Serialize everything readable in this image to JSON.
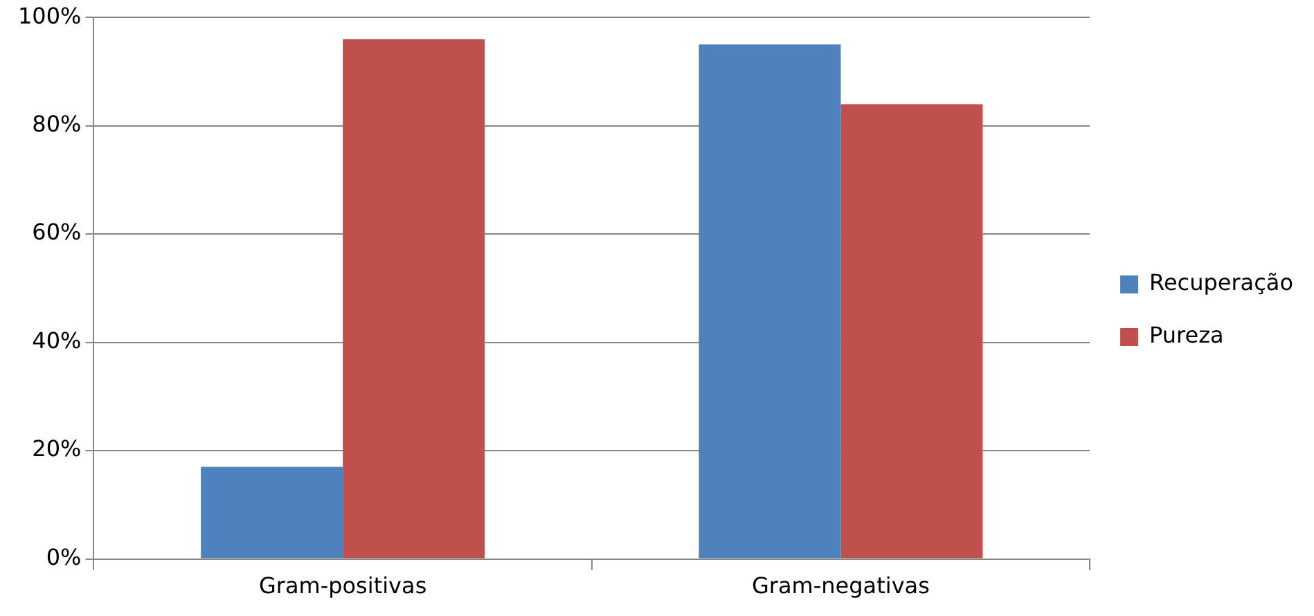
{
  "chart_data": {
    "type": "bar",
    "categories": [
      "Gram-positivas",
      "Gram-negativas"
    ],
    "series": [
      {
        "name": "Recuperação",
        "color": "#4f81bd",
        "values": [
          17,
          95
        ]
      },
      {
        "name": "Pureza",
        "color": "#c0504d",
        "values": [
          96,
          84
        ]
      }
    ],
    "ylim": [
      0,
      100
    ],
    "yticks": [
      {
        "value": 0,
        "label": "0%"
      },
      {
        "value": 20,
        "label": "20%"
      },
      {
        "value": 40,
        "label": "40%"
      },
      {
        "value": 60,
        "label": "60%"
      },
      {
        "value": 80,
        "label": "80%"
      },
      {
        "value": 100,
        "label": "100%"
      }
    ],
    "grid": "y",
    "legend": "right"
  }
}
